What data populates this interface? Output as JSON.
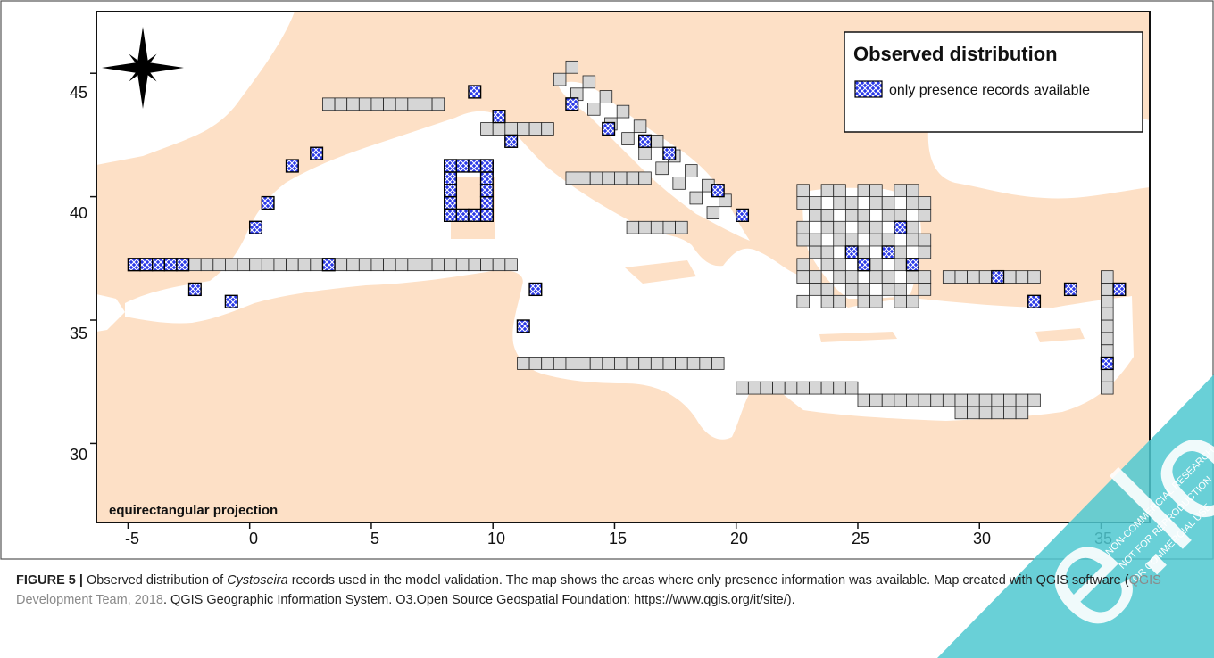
{
  "map": {
    "projection_label": "equirectangular projection",
    "x_ticks": [
      "-5",
      "0",
      "5",
      "10",
      "15",
      "20",
      "25",
      "30",
      "35"
    ],
    "y_ticks": [
      "45",
      "40",
      "35",
      "30"
    ],
    "legend": {
      "title": "Observed distribution",
      "item": "only presence records available"
    },
    "colors": {
      "land": "#fde0c6",
      "sea": "#ffffff",
      "cell_fill": "#d6d6d6",
      "presence": "#2a39e8"
    },
    "icons": [
      "compass-rose-icon"
    ]
  },
  "caption": {
    "label": "FIGURE 5 |",
    "text_1": " Observed distribution of ",
    "italic": "Cystoseira",
    "text_2": " records used in the model validation. The map shows the areas where only presence information was available. Map created with QGIS software (",
    "ref": "QGIS Development Team, 2018",
    "text_3": ". QGIS Geographic Information System. O3.Open Source Geospatial Foundation: https://www.qgis.org/it/site/)."
  },
  "watermark": {
    "brand": "e.lo",
    "lines": [
      "NON-COMMERCIAL RESEARCH",
      "NOT FOR REPRODUCTION",
      "OR COMMERCIAL USE"
    ]
  },
  "chart_data": {
    "type": "map",
    "xlim": [
      -6.3,
      37
    ],
    "ylim": [
      26.8,
      47.5
    ],
    "xlabel": "",
    "ylabel": "",
    "grid": false,
    "legend_position": "top-right"
  }
}
